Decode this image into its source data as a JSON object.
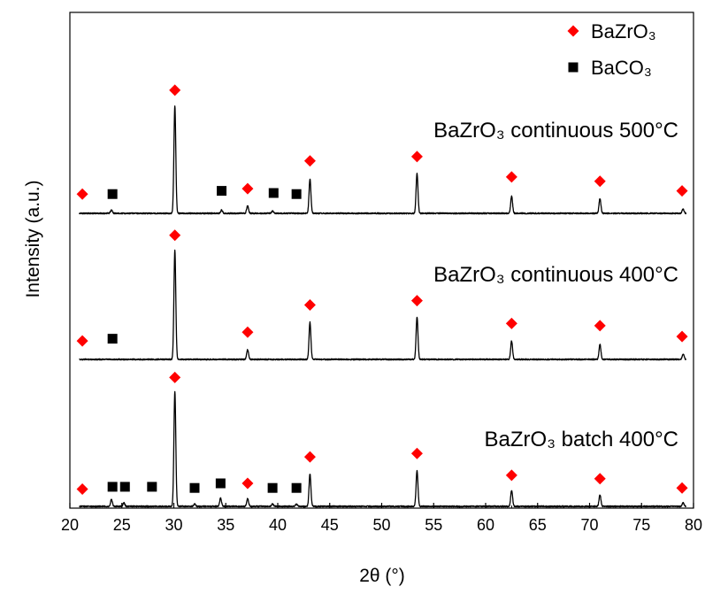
{
  "chart_data": {
    "type": "line",
    "title": "",
    "xlabel": "2θ (°)",
    "ylabel": "Intensity (a.u.)",
    "xlim": [
      20,
      80
    ],
    "x_ticks": [
      "20",
      "25",
      "30",
      "35",
      "40",
      "45",
      "50",
      "55",
      "60",
      "65",
      "70",
      "75",
      "80"
    ],
    "legend": {
      "position": "top-right",
      "entries": [
        {
          "name": "BaZrO₃",
          "marker": "diamond",
          "color": "#ff0000"
        },
        {
          "name": "BaCO₃",
          "marker": "square",
          "color": "#000000"
        }
      ]
    },
    "series": [
      {
        "name": "BaZrO₃ continuous 500°C",
        "peaks": [
          {
            "x": 24.0,
            "h": 0.03
          },
          {
            "x": 30.1,
            "h": 1.0
          },
          {
            "x": 34.6,
            "h": 0.03
          },
          {
            "x": 37.1,
            "h": 0.07
          },
          {
            "x": 39.5,
            "h": 0.02
          },
          {
            "x": 43.1,
            "h": 0.32
          },
          {
            "x": 53.4,
            "h": 0.37
          },
          {
            "x": 62.5,
            "h": 0.16
          },
          {
            "x": 71.0,
            "h": 0.14
          },
          {
            "x": 79.0,
            "h": 0.04
          }
        ],
        "markers": [
          {
            "type": "diamond",
            "x": 21.2,
            "h": 0.18
          },
          {
            "type": "square",
            "x": 24.1,
            "h": 0.18
          },
          {
            "type": "diamond",
            "x": 30.1,
            "h": 1.15
          },
          {
            "type": "square",
            "x": 34.6,
            "h": 0.21
          },
          {
            "type": "diamond",
            "x": 37.1,
            "h": 0.23
          },
          {
            "type": "square",
            "x": 39.6,
            "h": 0.19
          },
          {
            "type": "square",
            "x": 41.8,
            "h": 0.18
          },
          {
            "type": "diamond",
            "x": 43.1,
            "h": 0.49
          },
          {
            "type": "diamond",
            "x": 53.4,
            "h": 0.53
          },
          {
            "type": "diamond",
            "x": 62.5,
            "h": 0.34
          },
          {
            "type": "diamond",
            "x": 71.0,
            "h": 0.3
          },
          {
            "type": "diamond",
            "x": 78.9,
            "h": 0.21
          }
        ]
      },
      {
        "name": "BaZrO₃ continuous 400°C",
        "peaks": [
          {
            "x": 30.1,
            "h": 1.0
          },
          {
            "x": 37.1,
            "h": 0.09
          },
          {
            "x": 43.1,
            "h": 0.34
          },
          {
            "x": 53.4,
            "h": 0.39
          },
          {
            "x": 62.5,
            "h": 0.17
          },
          {
            "x": 71.0,
            "h": 0.14
          },
          {
            "x": 79.0,
            "h": 0.05
          }
        ],
        "markers": [
          {
            "type": "diamond",
            "x": 21.2,
            "h": 0.17
          },
          {
            "type": "square",
            "x": 24.1,
            "h": 0.19
          },
          {
            "type": "diamond",
            "x": 30.1,
            "h": 1.14
          },
          {
            "type": "diamond",
            "x": 37.1,
            "h": 0.25
          },
          {
            "type": "diamond",
            "x": 43.1,
            "h": 0.5
          },
          {
            "type": "diamond",
            "x": 53.4,
            "h": 0.54
          },
          {
            "type": "diamond",
            "x": 62.5,
            "h": 0.33
          },
          {
            "type": "diamond",
            "x": 71.0,
            "h": 0.31
          },
          {
            "type": "diamond",
            "x": 78.9,
            "h": 0.21
          }
        ]
      },
      {
        "name": "BaZrO₃ batch 400°C",
        "peaks": [
          {
            "x": 24.0,
            "h": 0.06
          },
          {
            "x": 25.2,
            "h": 0.03
          },
          {
            "x": 30.1,
            "h": 1.0
          },
          {
            "x": 32.0,
            "h": 0.02
          },
          {
            "x": 34.5,
            "h": 0.07
          },
          {
            "x": 37.1,
            "h": 0.07
          },
          {
            "x": 39.5,
            "h": 0.02
          },
          {
            "x": 41.8,
            "h": 0.02
          },
          {
            "x": 43.1,
            "h": 0.28
          },
          {
            "x": 53.4,
            "h": 0.31
          },
          {
            "x": 62.5,
            "h": 0.14
          },
          {
            "x": 71.0,
            "h": 0.1
          },
          {
            "x": 79.0,
            "h": 0.03
          }
        ],
        "markers": [
          {
            "type": "diamond",
            "x": 21.2,
            "h": 0.15
          },
          {
            "type": "square",
            "x": 24.1,
            "h": 0.17
          },
          {
            "type": "square",
            "x": 25.3,
            "h": 0.17
          },
          {
            "type": "square",
            "x": 27.9,
            "h": 0.17
          },
          {
            "type": "square",
            "x": 32.0,
            "h": 0.16
          },
          {
            "type": "square",
            "x": 34.5,
            "h": 0.2
          },
          {
            "type": "diamond",
            "x": 30.1,
            "h": 1.12
          },
          {
            "type": "diamond",
            "x": 37.1,
            "h": 0.2
          },
          {
            "type": "square",
            "x": 39.5,
            "h": 0.16
          },
          {
            "type": "square",
            "x": 41.8,
            "h": 0.16
          },
          {
            "type": "diamond",
            "x": 43.1,
            "h": 0.43
          },
          {
            "type": "diamond",
            "x": 53.4,
            "h": 0.46
          },
          {
            "type": "diamond",
            "x": 62.5,
            "h": 0.27
          },
          {
            "type": "diamond",
            "x": 71.0,
            "h": 0.24
          },
          {
            "type": "diamond",
            "x": 78.9,
            "h": 0.16
          }
        ]
      }
    ]
  }
}
